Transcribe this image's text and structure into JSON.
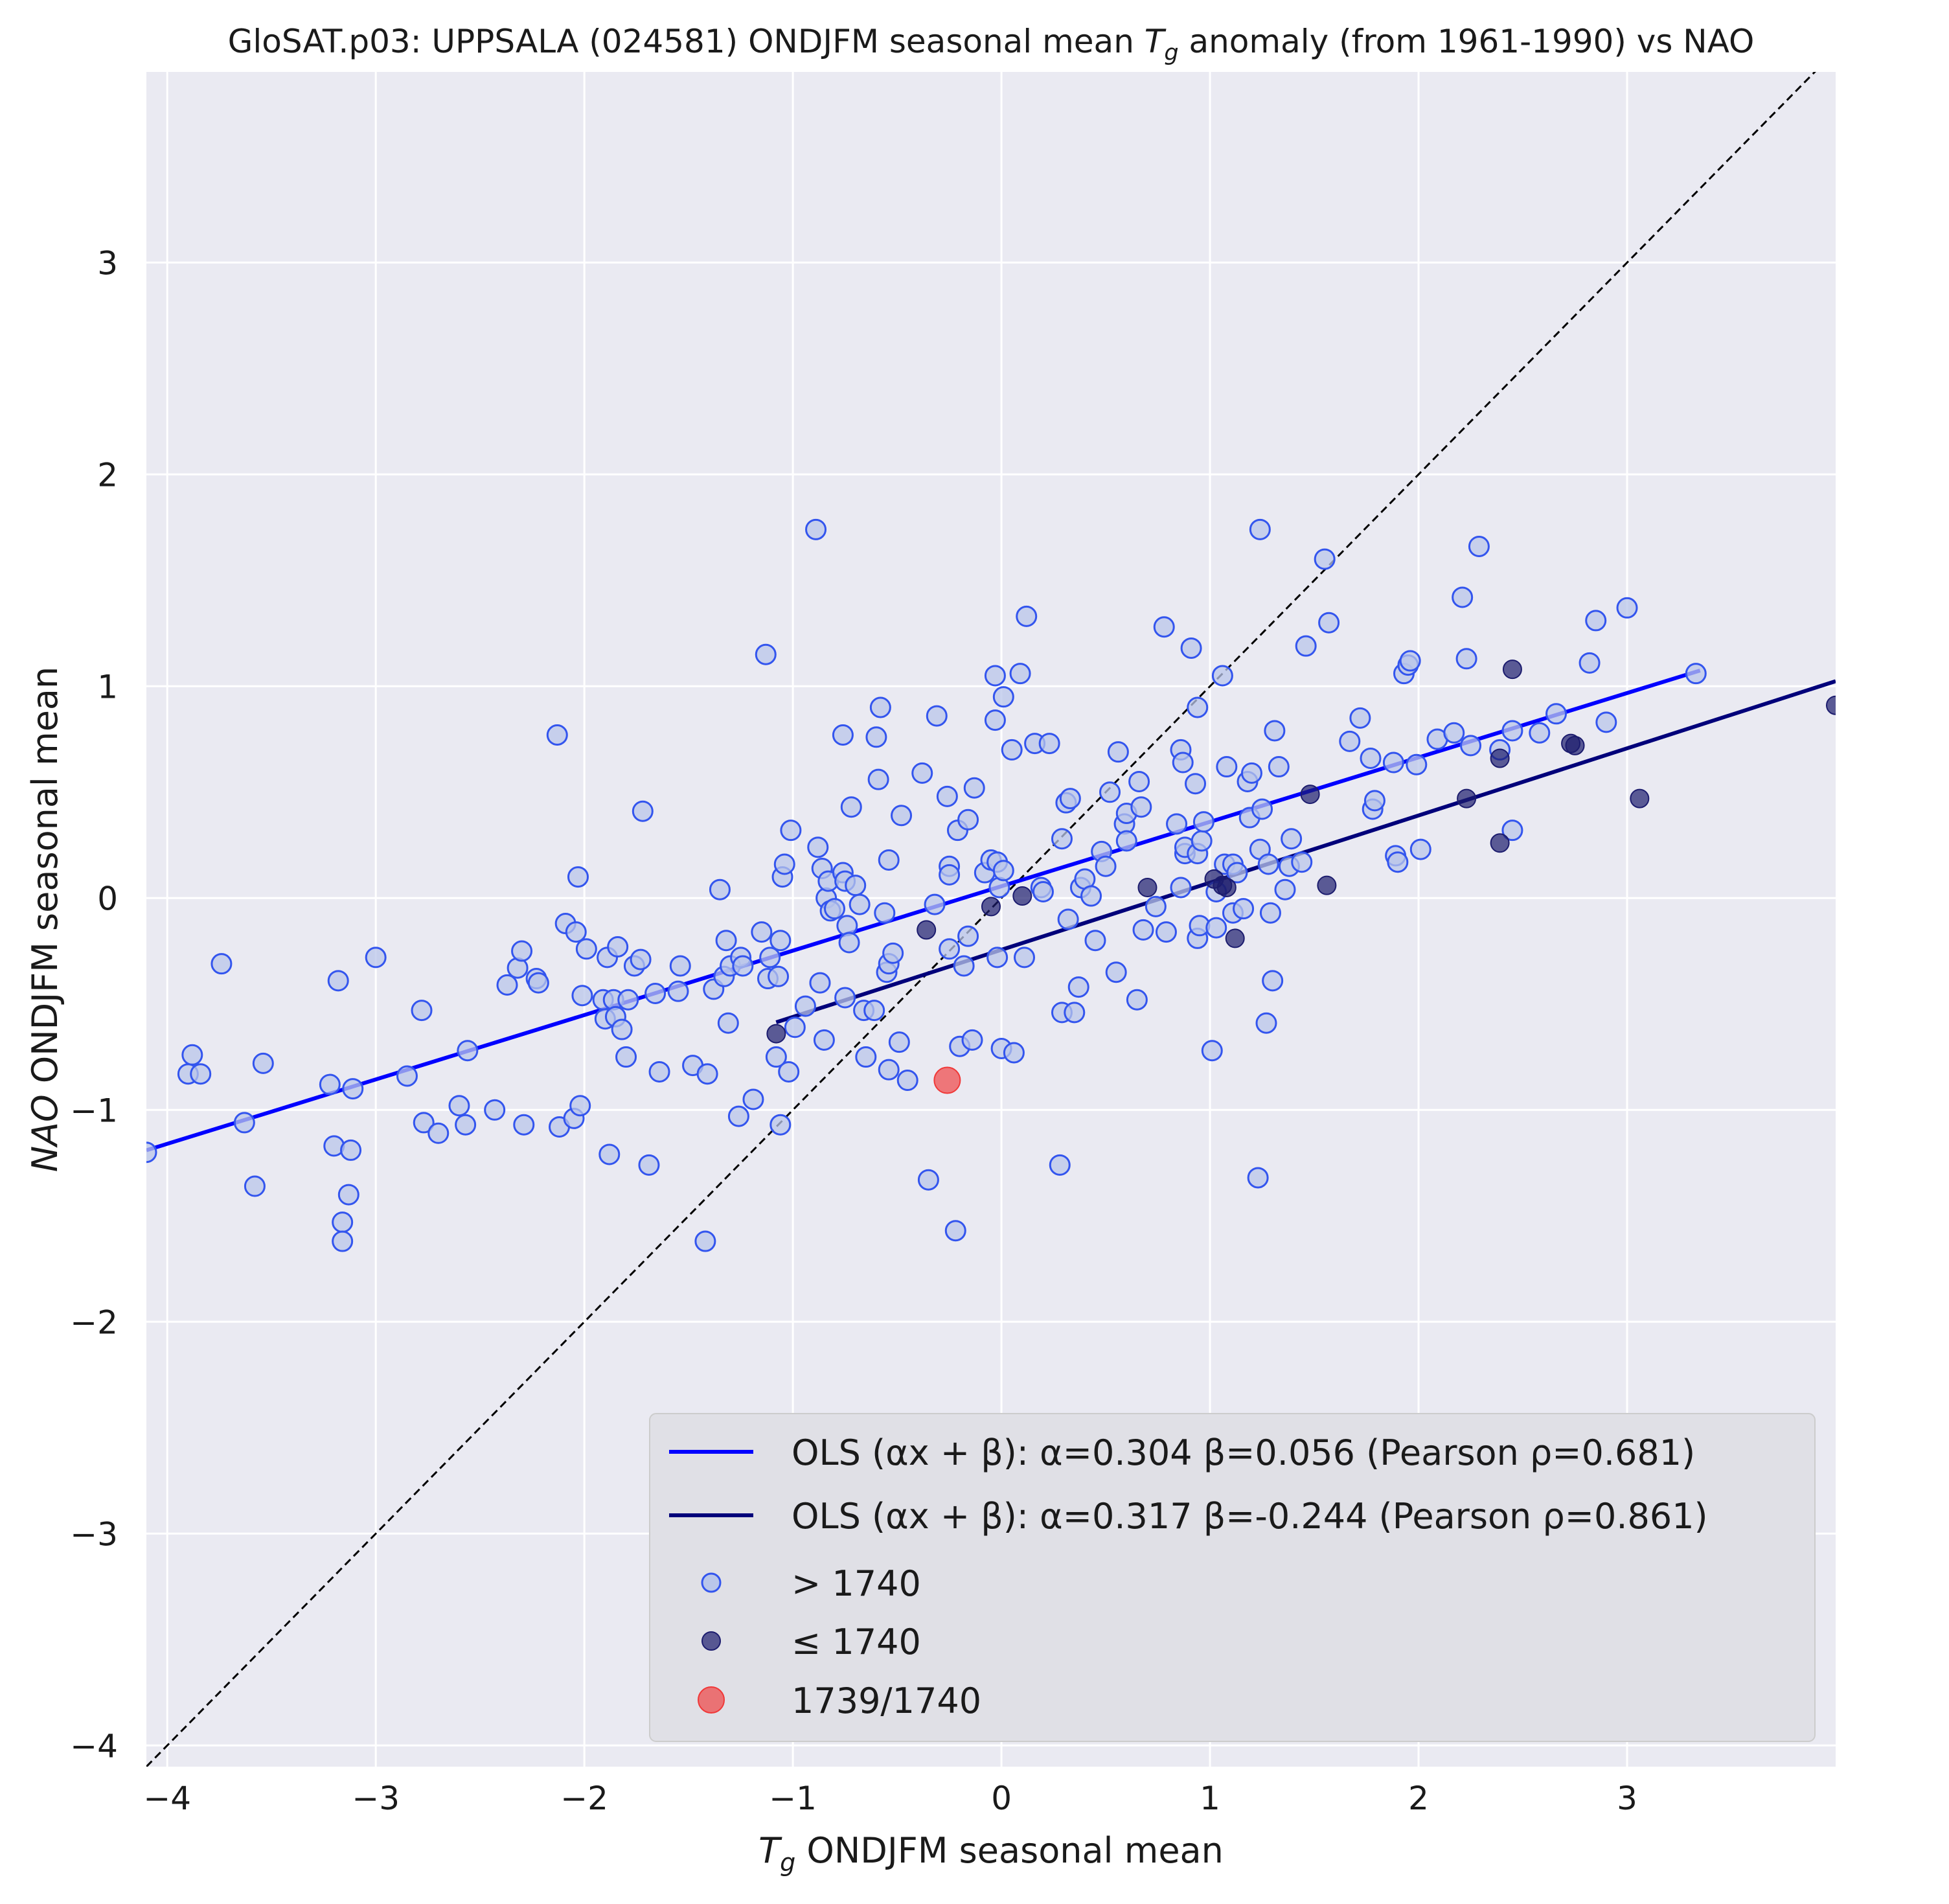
{
  "chart_data": {
    "type": "scatter",
    "title_parts": {
      "prefix": "GloSAT.p03: UPPSALA (024581) ONDJFM seasonal mean ",
      "var": "T",
      "sub": "g",
      "suffix": " anomaly (from 1961-1990) vs NAO"
    },
    "xlabel_parts": {
      "var": "T",
      "sub": "g",
      "suffix": " ONDJFM seasonal mean"
    },
    "ylabel_parts": {
      "var": "NAO",
      "suffix": " ONDJFM seasonal mean"
    },
    "xlim": [
      -4.1,
      4.0
    ],
    "ylim": [
      -4.1,
      3.9
    ],
    "xticks": [
      -4,
      -3,
      -2,
      -1,
      0,
      1,
      2,
      3
    ],
    "yticks": [
      -4,
      -3,
      -2,
      -1,
      0,
      1,
      2,
      3
    ],
    "tick_labels_x": [
      "−4",
      "−3",
      "−2",
      "−1",
      "0",
      "1",
      "2",
      "3"
    ],
    "tick_labels_y": [
      "−4",
      "−3",
      "−2",
      "−1",
      "0",
      "1",
      "2",
      "3"
    ],
    "grid": true,
    "legend_position": "lower-right",
    "colors": {
      "background": "#eaeaf2",
      "grid": "#ffffff",
      "post1740_edge": "#3355ee",
      "post1740_fill": "#b9c6ea",
      "pre1740": "#1c1c6e",
      "highlight": "#f03838",
      "fit_post": "#0000ff",
      "fit_pre": "#00007a",
      "identity": "#000000"
    },
    "identity_line": {
      "from": [
        -4.1,
        -4.1
      ],
      "to": [
        4.0,
        4.0
      ]
    },
    "fits": [
      {
        "alpha": 0.304,
        "beta": 0.056,
        "x_range": [
          -4.1,
          3.35
        ],
        "legend": "OLS (αx + β): α=0.304 β=0.056 (Pearson ρ=0.681)"
      },
      {
        "alpha": 0.317,
        "beta": -0.244,
        "x_range": [
          -1.08,
          4.0
        ],
        "legend": "OLS (αx + β): α=0.317 β=-0.244 (Pearson ρ=0.861)"
      }
    ],
    "series": [
      {
        "name": "> 1740",
        "points": [
          [
            -4.1,
            -1.2
          ],
          [
            -3.9,
            -0.83
          ],
          [
            -3.88,
            -0.74
          ],
          [
            -3.84,
            -0.83
          ],
          [
            -3.74,
            -0.31
          ],
          [
            -3.63,
            -1.06
          ],
          [
            -3.58,
            -1.36
          ],
          [
            -3.54,
            -0.78
          ],
          [
            -3.22,
            -0.88
          ],
          [
            -3.2,
            -1.17
          ],
          [
            -3.18,
            -0.39
          ],
          [
            -3.16,
            -1.53
          ],
          [
            -3.16,
            -1.62
          ],
          [
            -3.13,
            -1.4
          ],
          [
            -3.12,
            -1.19
          ],
          [
            -3.11,
            -0.9
          ],
          [
            -3.0,
            -0.28
          ],
          [
            -2.85,
            -0.84
          ],
          [
            -2.78,
            -0.53
          ],
          [
            -2.77,
            -1.06
          ],
          [
            -2.7,
            -1.11
          ],
          [
            -2.6,
            -0.98
          ],
          [
            -2.57,
            -1.07
          ],
          [
            -2.56,
            -0.72
          ],
          [
            -2.43,
            -1.0
          ],
          [
            -2.37,
            -0.41
          ],
          [
            -2.32,
            -0.33
          ],
          [
            -2.3,
            -0.25
          ],
          [
            -2.29,
            -1.07
          ],
          [
            -2.23,
            -0.38
          ],
          [
            -2.22,
            -0.4
          ],
          [
            -2.13,
            0.77
          ],
          [
            -2.12,
            -1.08
          ],
          [
            -2.09,
            -0.12
          ],
          [
            -2.05,
            -1.04
          ],
          [
            -2.04,
            -0.16
          ],
          [
            -2.03,
            0.1
          ],
          [
            -2.02,
            -0.98
          ],
          [
            -2.01,
            -0.46
          ],
          [
            -1.99,
            -0.24
          ],
          [
            -1.91,
            -0.48
          ],
          [
            -1.9,
            -0.57
          ],
          [
            -1.89,
            -0.28
          ],
          [
            -1.88,
            -1.21
          ],
          [
            -1.86,
            -0.48
          ],
          [
            -1.85,
            -0.56
          ],
          [
            -1.84,
            -0.23
          ],
          [
            -1.82,
            -0.62
          ],
          [
            -1.8,
            -0.75
          ],
          [
            -1.79,
            -0.48
          ],
          [
            -1.76,
            -0.32
          ],
          [
            -1.73,
            -0.29
          ],
          [
            -1.72,
            0.41
          ],
          [
            -1.69,
            -1.26
          ],
          [
            -1.66,
            -0.45
          ],
          [
            -1.64,
            -0.82
          ],
          [
            -1.55,
            -0.44
          ],
          [
            -1.54,
            -0.32
          ],
          [
            -1.48,
            -0.79
          ],
          [
            -1.42,
            -1.62
          ],
          [
            -1.41,
            -0.83
          ],
          [
            -1.38,
            -0.43
          ],
          [
            -1.35,
            0.04
          ],
          [
            -1.33,
            -0.37
          ],
          [
            -1.32,
            -0.2
          ],
          [
            -1.31,
            -0.59
          ],
          [
            -1.3,
            -0.32
          ],
          [
            -1.26,
            -1.03
          ],
          [
            -1.25,
            -0.28
          ],
          [
            -1.24,
            -0.32
          ],
          [
            -1.19,
            -0.95
          ],
          [
            -1.15,
            -0.16
          ],
          [
            -1.13,
            1.15
          ],
          [
            -1.12,
            -0.38
          ],
          [
            -1.11,
            -0.28
          ],
          [
            -1.08,
            -0.75
          ],
          [
            -1.07,
            -0.37
          ],
          [
            -1.06,
            -1.07
          ],
          [
            -1.06,
            -0.2
          ],
          [
            -1.05,
            0.1
          ],
          [
            -1.04,
            0.16
          ],
          [
            -1.02,
            -0.82
          ],
          [
            -1.01,
            0.32
          ],
          [
            -0.99,
            -0.61
          ],
          [
            -0.94,
            -0.51
          ],
          [
            -0.89,
            1.74
          ],
          [
            -0.88,
            0.24
          ],
          [
            -0.87,
            -0.4
          ],
          [
            -0.86,
            0.14
          ],
          [
            -0.85,
            -0.67
          ],
          [
            -0.84,
            0.0
          ],
          [
            -0.83,
            0.08
          ],
          [
            -0.82,
            -0.06
          ],
          [
            -0.8,
            -0.05
          ],
          [
            -0.76,
            0.77
          ],
          [
            -0.76,
            0.12
          ],
          [
            -0.75,
            0.08
          ],
          [
            -0.75,
            -0.47
          ],
          [
            -0.74,
            -0.13
          ],
          [
            -0.73,
            -0.21
          ],
          [
            -0.72,
            0.43
          ],
          [
            -0.7,
            0.06
          ],
          [
            -0.68,
            -0.03
          ],
          [
            -0.66,
            -0.53
          ],
          [
            -0.65,
            -0.75
          ],
          [
            -0.61,
            -0.53
          ],
          [
            -0.6,
            0.76
          ],
          [
            -0.59,
            0.56
          ],
          [
            -0.58,
            0.9
          ],
          [
            -0.56,
            -0.07
          ],
          [
            -0.55,
            -0.35
          ],
          [
            -0.54,
            -0.31
          ],
          [
            -0.54,
            0.18
          ],
          [
            -0.54,
            -0.81
          ],
          [
            -0.52,
            -0.26
          ],
          [
            -0.49,
            -0.68
          ],
          [
            -0.48,
            0.39
          ],
          [
            -0.45,
            -0.86
          ],
          [
            -0.38,
            0.59
          ],
          [
            -0.35,
            -1.33
          ],
          [
            -0.32,
            -0.03
          ],
          [
            -0.31,
            0.86
          ],
          [
            -0.26,
            0.48
          ],
          [
            -0.25,
            -0.24
          ],
          [
            -0.25,
            0.15
          ],
          [
            -0.25,
            0.11
          ],
          [
            -0.22,
            -1.57
          ],
          [
            -0.21,
            0.32
          ],
          [
            -0.2,
            -0.7
          ],
          [
            -0.18,
            -0.32
          ],
          [
            -0.16,
            -0.18
          ],
          [
            -0.16,
            0.37
          ],
          [
            -0.14,
            -0.67
          ],
          [
            -0.13,
            0.52
          ],
          [
            -0.08,
            0.12
          ],
          [
            -0.05,
            0.18
          ],
          [
            -0.03,
            1.05
          ],
          [
            -0.03,
            0.84
          ],
          [
            -0.02,
            0.17
          ],
          [
            -0.02,
            -0.28
          ],
          [
            -0.01,
            0.05
          ],
          [
            0.0,
            -0.71
          ],
          [
            0.01,
            0.95
          ],
          [
            0.01,
            0.13
          ],
          [
            0.05,
            0.7
          ],
          [
            0.06,
            -0.73
          ],
          [
            0.09,
            1.06
          ],
          [
            0.11,
            -0.28
          ],
          [
            0.12,
            1.33
          ],
          [
            0.16,
            0.73
          ],
          [
            0.19,
            0.05
          ],
          [
            0.2,
            0.03
          ],
          [
            0.23,
            0.73
          ],
          [
            0.28,
            -1.26
          ],
          [
            0.29,
            0.28
          ],
          [
            0.29,
            -0.54
          ],
          [
            0.31,
            0.45
          ],
          [
            0.32,
            -0.1
          ],
          [
            0.33,
            0.47
          ],
          [
            0.35,
            -0.54
          ],
          [
            0.37,
            -0.42
          ],
          [
            0.38,
            0.05
          ],
          [
            0.4,
            0.09
          ],
          [
            0.43,
            0.01
          ],
          [
            0.45,
            -0.2
          ],
          [
            0.48,
            0.22
          ],
          [
            0.5,
            0.15
          ],
          [
            0.52,
            0.5
          ],
          [
            0.55,
            -0.35
          ],
          [
            0.56,
            0.69
          ],
          [
            0.59,
            0.35
          ],
          [
            0.6,
            0.4
          ],
          [
            0.6,
            0.27
          ],
          [
            0.65,
            -0.48
          ],
          [
            0.66,
            0.55
          ],
          [
            0.67,
            0.43
          ],
          [
            0.68,
            -0.15
          ],
          [
            0.74,
            -0.04
          ],
          [
            0.78,
            1.28
          ],
          [
            0.79,
            -0.16
          ],
          [
            0.84,
            0.35
          ],
          [
            0.86,
            0.05
          ],
          [
            0.86,
            0.7
          ],
          [
            0.87,
            0.64
          ],
          [
            0.88,
            0.21
          ],
          [
            0.88,
            0.24
          ],
          [
            0.91,
            1.18
          ],
          [
            0.93,
            0.54
          ],
          [
            0.94,
            0.9
          ],
          [
            0.94,
            -0.19
          ],
          [
            0.94,
            0.21
          ],
          [
            0.95,
            -0.13
          ],
          [
            0.96,
            0.27
          ],
          [
            0.97,
            0.36
          ],
          [
            1.01,
            -0.72
          ],
          [
            1.03,
            0.03
          ],
          [
            1.03,
            -0.14
          ],
          [
            1.06,
            1.05
          ],
          [
            1.07,
            0.16
          ],
          [
            1.08,
            0.62
          ],
          [
            1.11,
            -0.07
          ],
          [
            1.11,
            0.16
          ],
          [
            1.13,
            0.12
          ],
          [
            1.16,
            -0.05
          ],
          [
            1.18,
            0.55
          ],
          [
            1.19,
            0.38
          ],
          [
            1.2,
            0.59
          ],
          [
            1.23,
            -1.32
          ],
          [
            1.24,
            1.74
          ],
          [
            1.24,
            0.23
          ],
          [
            1.25,
            0.42
          ],
          [
            1.27,
            -0.59
          ],
          [
            1.28,
            0.16
          ],
          [
            1.29,
            -0.07
          ],
          [
            1.3,
            -0.39
          ],
          [
            1.31,
            0.79
          ],
          [
            1.33,
            0.62
          ],
          [
            1.36,
            0.04
          ],
          [
            1.38,
            0.15
          ],
          [
            1.39,
            0.28
          ],
          [
            1.44,
            0.17
          ],
          [
            1.46,
            1.19
          ],
          [
            1.55,
            1.6
          ],
          [
            1.57,
            1.3
          ],
          [
            1.67,
            0.74
          ],
          [
            1.72,
            0.85
          ],
          [
            1.77,
            0.66
          ],
          [
            1.78,
            0.42
          ],
          [
            1.79,
            0.46
          ],
          [
            1.88,
            0.64
          ],
          [
            1.89,
            0.2
          ],
          [
            1.9,
            0.17
          ],
          [
            1.93,
            1.06
          ],
          [
            1.95,
            1.1
          ],
          [
            1.96,
            1.12
          ],
          [
            1.99,
            0.63
          ],
          [
            2.01,
            0.23
          ],
          [
            2.09,
            0.75
          ],
          [
            2.17,
            0.78
          ],
          [
            2.21,
            1.42
          ],
          [
            2.23,
            1.13
          ],
          [
            2.25,
            0.72
          ],
          [
            2.29,
            1.66
          ],
          [
            2.39,
            0.7
          ],
          [
            2.45,
            0.79
          ],
          [
            2.45,
            0.32
          ],
          [
            2.58,
            0.78
          ],
          [
            2.66,
            0.87
          ],
          [
            2.82,
            1.11
          ],
          [
            2.85,
            1.31
          ],
          [
            2.9,
            0.83
          ],
          [
            3.0,
            1.37
          ],
          [
            3.33,
            1.06
          ]
        ]
      },
      {
        "name": "≤ 1740",
        "points": [
          [
            -1.08,
            -0.64
          ],
          [
            -0.36,
            -0.15
          ],
          [
            -0.05,
            -0.04
          ],
          [
            0.1,
            0.01
          ],
          [
            0.7,
            0.05
          ],
          [
            1.02,
            0.09
          ],
          [
            1.06,
            0.06
          ],
          [
            1.08,
            0.05
          ],
          [
            1.12,
            -0.19
          ],
          [
            1.48,
            0.49
          ],
          [
            1.56,
            0.06
          ],
          [
            2.23,
            0.47
          ],
          [
            2.39,
            0.66
          ],
          [
            2.39,
            0.26
          ],
          [
            2.45,
            1.08
          ],
          [
            2.73,
            0.73
          ],
          [
            2.75,
            0.72
          ],
          [
            3.06,
            0.47
          ],
          [
            4.0,
            0.91
          ]
        ]
      },
      {
        "name": "1739/1740",
        "points": [
          [
            -0.26,
            -0.86
          ]
        ]
      }
    ]
  }
}
